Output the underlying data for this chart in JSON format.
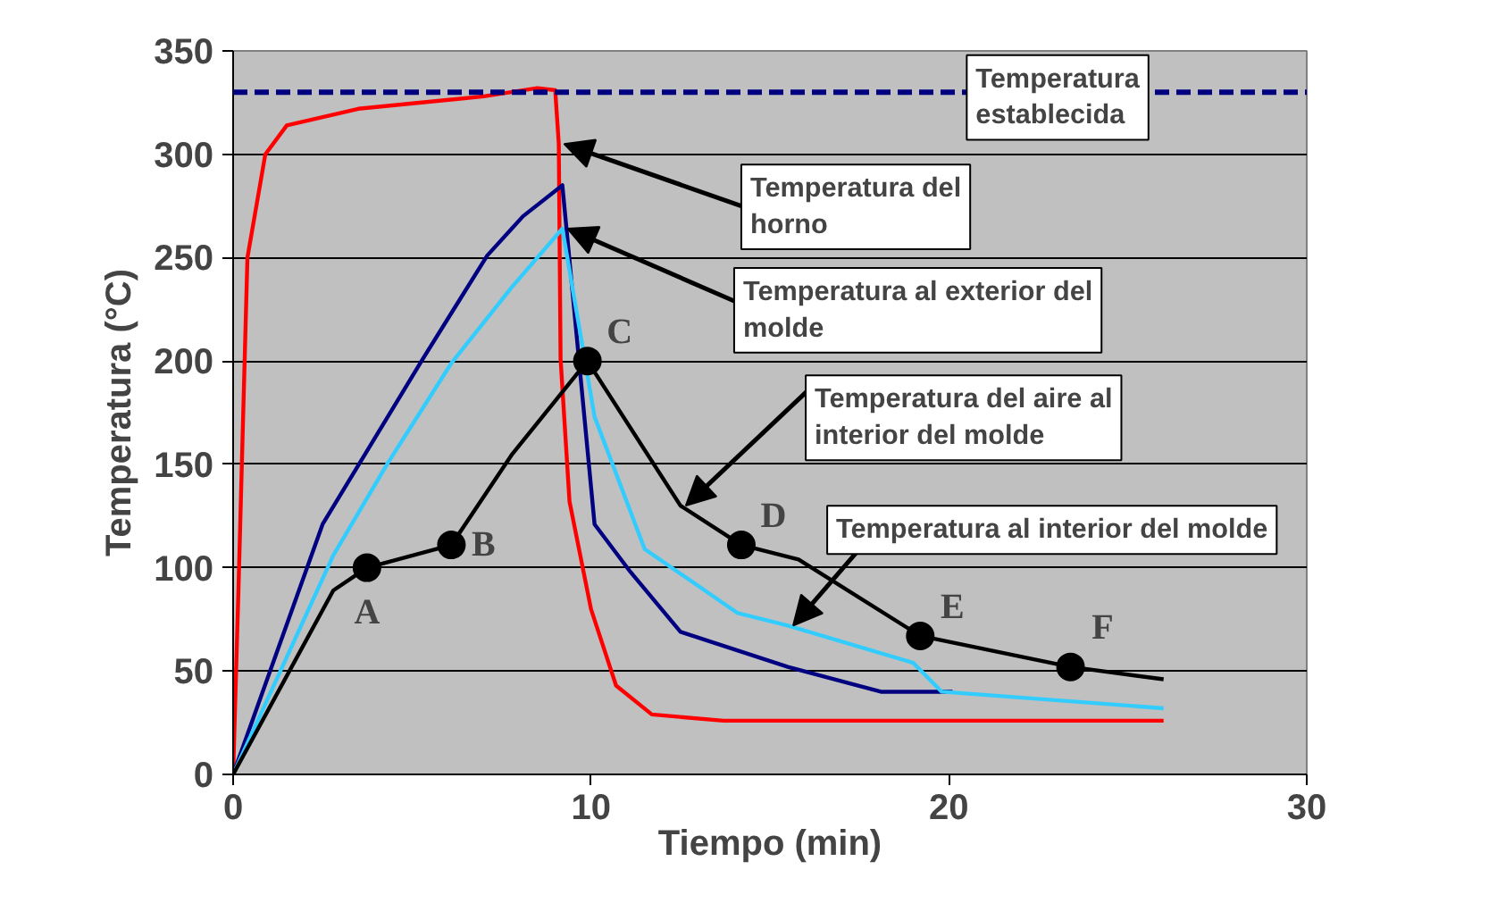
{
  "chart_data": {
    "type": "line",
    "xlabel": "Tiempo (min)",
    "ylabel": "Temperatura (°C)",
    "xlim": [
      0,
      30
    ],
    "ylim": [
      0,
      350
    ],
    "xticks": [
      0,
      10,
      20,
      30
    ],
    "yticks": [
      0,
      50,
      100,
      150,
      200,
      250,
      300,
      350
    ],
    "grid": "y",
    "marker": "none",
    "line_style": "solid",
    "series": [
      {
        "color": "#ff0000",
        "x": [
          0,
          0.15,
          0.4,
          0.9,
          1.5,
          3.5,
          7,
          8.5,
          9,
          9.1,
          9.15,
          9.4,
          10,
          10.7,
          11.7,
          13.7,
          26
        ],
        "values": [
          0,
          90,
          250,
          300,
          314,
          322,
          328,
          332,
          331,
          305,
          201,
          132,
          80,
          43,
          29,
          26,
          26
        ]
      },
      {
        "color": "#000080",
        "x": [
          0,
          2.5,
          5.3,
          7.1,
          8.1,
          9.2,
          10.1,
          11.1,
          12.5,
          15.5,
          18.1,
          20.1
        ],
        "values": [
          0,
          121,
          201,
          251,
          270,
          285,
          121,
          98,
          69,
          52,
          40,
          40
        ]
      },
      {
        "color": "#33ccff",
        "x": [
          0,
          2.8,
          4.3,
          6.1,
          7.8,
          9.2,
          10.1,
          11.5,
          14.1,
          15.5,
          19,
          19.8,
          26
        ],
        "values": [
          0,
          106,
          150,
          199,
          236,
          264,
          173,
          109,
          78,
          72,
          54,
          40,
          32
        ]
      },
      {
        "color": "#000000",
        "x": [
          0,
          2.8,
          3.74,
          6.1,
          7.8,
          9.9,
          12.5,
          14.2,
          15.8,
          19.2,
          23.4,
          26
        ],
        "values": [
          0,
          89,
          100,
          111,
          155,
          200,
          130,
          111,
          104,
          67,
          52,
          46
        ]
      },
      {
        "type": "scatter",
        "marker": "circle",
        "color": "#000000",
        "x": [
          3.74,
          6.1,
          9.9,
          14.2,
          19.2,
          23.4
        ],
        "values": [
          100,
          111,
          200,
          111,
          67,
          52
        ]
      }
    ],
    "ref_lines": [
      {
        "axis": "y",
        "value": 330,
        "label": "Temperatura\nestablecida",
        "color": "#000080",
        "line_style": "dashed"
      }
    ],
    "annotations": [
      {
        "text": "Temperatura del\nhorno",
        "x": 9.1,
        "y": 305
      },
      {
        "text": "Temperatura al exterior del\nmolde",
        "x": 9.2,
        "y": 264
      },
      {
        "text": "Temperatura del aire al\ninterior del molde",
        "x": 12.5,
        "y": 130
      },
      {
        "text": "Temperatura al interior del molde",
        "x": 15.5,
        "y": 72
      },
      {
        "text": "A",
        "x": 3.74,
        "y": 100
      },
      {
        "text": "B",
        "x": 6.1,
        "y": 111
      },
      {
        "text": "C",
        "x": 9.9,
        "y": 200
      },
      {
        "text": "D",
        "x": 14.2,
        "y": 111
      },
      {
        "text": "E",
        "x": 19.2,
        "y": 67
      },
      {
        "text": "F",
        "x": 23.4,
        "y": 52
      }
    ]
  }
}
